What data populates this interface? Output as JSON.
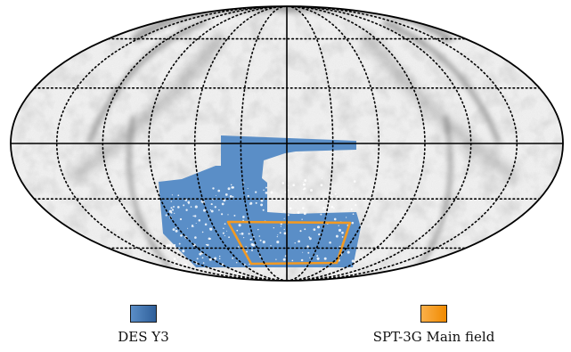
{
  "map": {
    "projection": "mollweide",
    "graticule": {
      "meridian_step_deg": 30,
      "parallel_step_deg": 30,
      "style": "dotted"
    },
    "background": "grayscale-dust-map"
  },
  "footprints": [
    {
      "name": "DES Y3",
      "color": "#5a8ec7",
      "fill_style": "scattered-points"
    },
    {
      "name": "SPT-3G Main field",
      "color": "#f39a22",
      "fill_style": "outline"
    }
  ],
  "legend": {
    "items": [
      {
        "label": "DES Y3",
        "swatch_color": "#5a8ec7",
        "swatch_gradient_dark": "#2f5f9a"
      },
      {
        "label": "SPT-3G Main field",
        "swatch_color": "#fbb04a",
        "swatch_gradient_dark": "#f08a00"
      }
    ]
  }
}
